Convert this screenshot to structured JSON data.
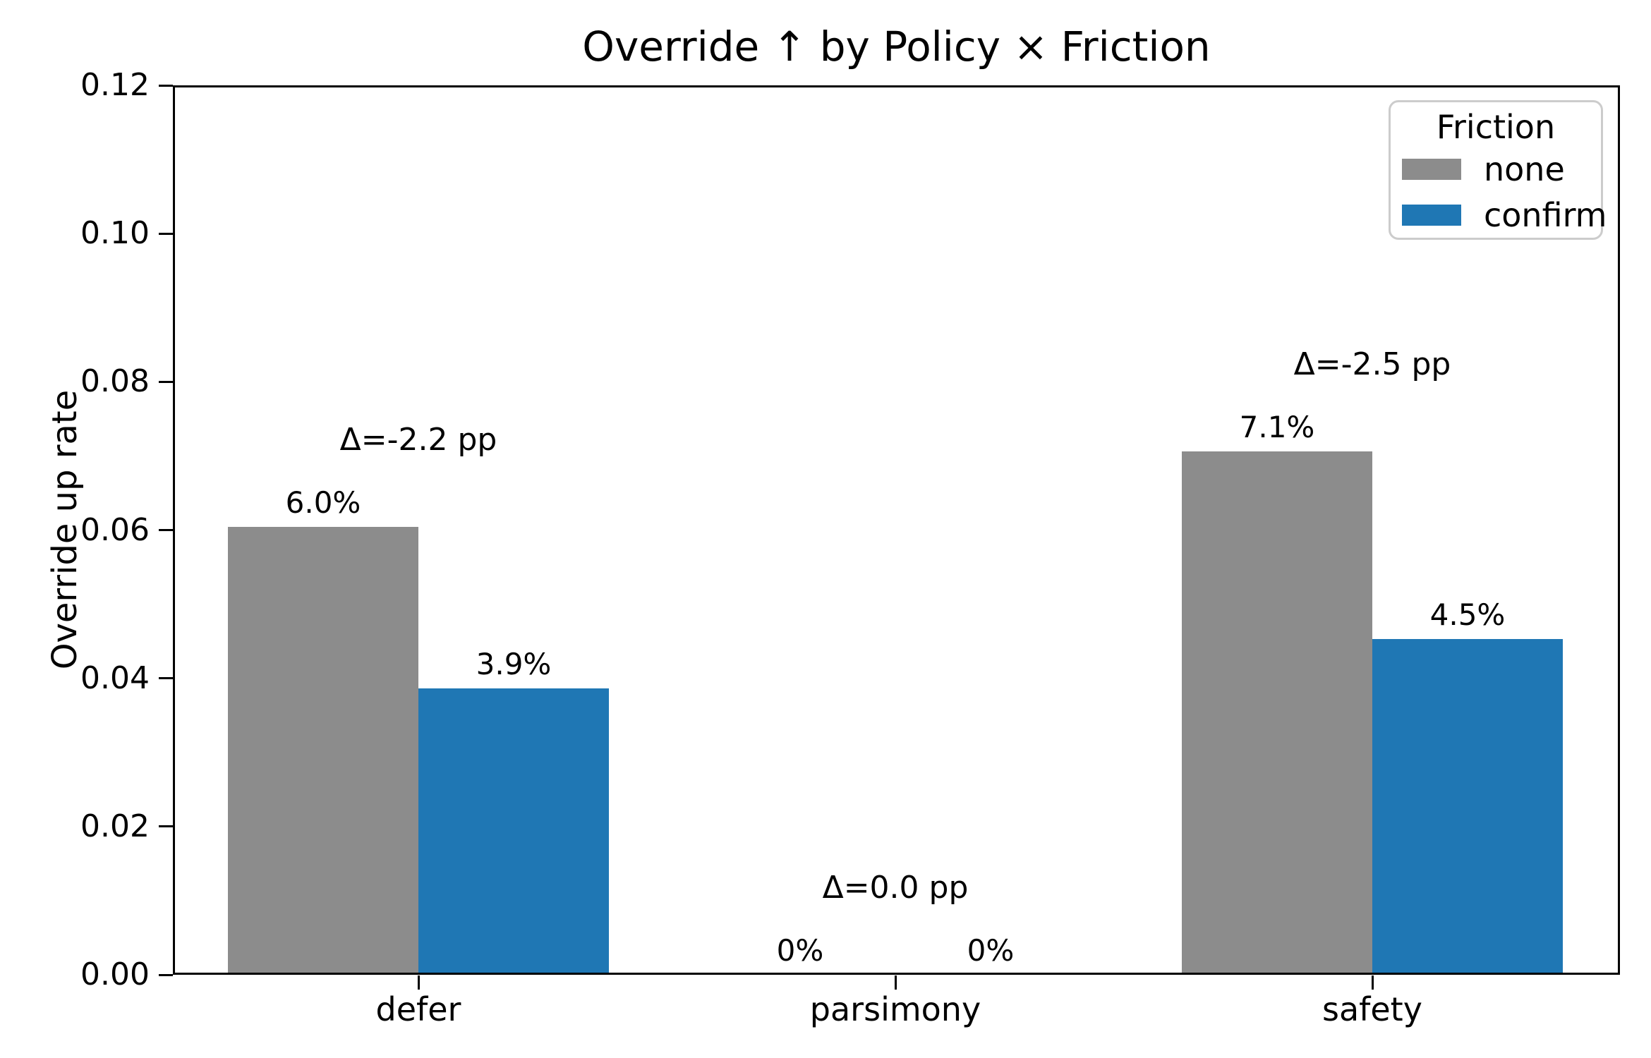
{
  "title": "Override ↑ by Policy × Friction",
  "ylabel": "Override up rate",
  "legend": {
    "title": "Friction",
    "items": [
      {
        "label": "none",
        "color": "#8c8c8c"
      },
      {
        "label": "confirm",
        "color": "#1f77b4"
      }
    ]
  },
  "chart_data": {
    "type": "bar",
    "categories": [
      "defer",
      "parsimony",
      "safety"
    ],
    "series": [
      {
        "name": "none",
        "color": "#8c8c8c",
        "values": [
          0.0604,
          0.0,
          0.0706
        ],
        "labels": [
          "6.0%",
          "0%",
          "7.1%"
        ]
      },
      {
        "name": "confirm",
        "color": "#1f77b4",
        "values": [
          0.0386,
          0.0,
          0.0453
        ],
        "labels": [
          "3.9%",
          "0%",
          "4.5%"
        ]
      }
    ],
    "group_annotations": [
      "Δ=-2.2 pp",
      "Δ=0.0 pp",
      "Δ=-2.5 pp"
    ],
    "yticks": [
      "0.00",
      "0.02",
      "0.04",
      "0.06",
      "0.08",
      "0.10",
      "0.12"
    ],
    "ytick_values": [
      0.0,
      0.02,
      0.04,
      0.06,
      0.08,
      0.1,
      0.12
    ],
    "ylim": [
      0,
      0.12
    ],
    "grid": false,
    "legend_position": "upper right",
    "accent_colors": {
      "none": "#8c8c8c",
      "confirm": "#1f77b4",
      "text": "#000000"
    }
  }
}
